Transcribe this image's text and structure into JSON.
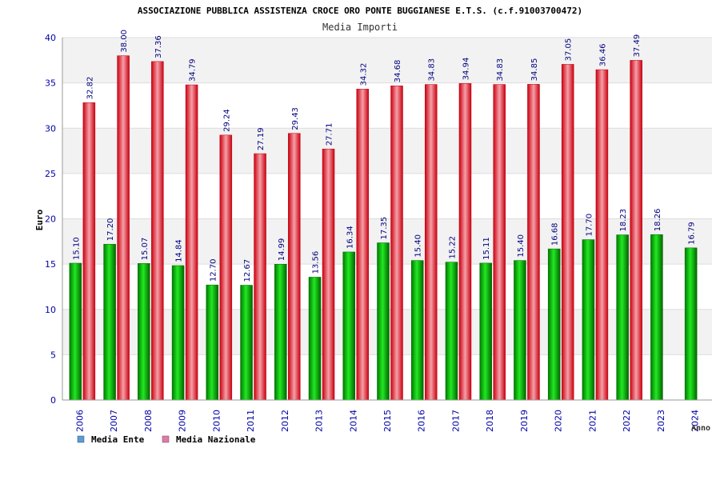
{
  "chart_data": {
    "type": "bar",
    "title": "ASSOCIAZIONE PUBBLICA ASSISTENZA CROCE ORO PONTE BUGGIANESE E.T.S. (c.f.91003700472)",
    "subtitle": "Media Importi",
    "xlabel": "Anno",
    "ylabel": "Euro",
    "ylim": [
      0,
      40
    ],
    "yticks": [
      "0",
      "5",
      "10",
      "15",
      "20",
      "25",
      "30",
      "35",
      "40"
    ],
    "grid": true,
    "legend_position": "bottom-left",
    "categories": [
      "2006",
      "2007",
      "2008",
      "2009",
      "2010",
      "2011",
      "2012",
      "2013",
      "2014",
      "2015",
      "2016",
      "2017",
      "2018",
      "2019",
      "2020",
      "2021",
      "2022",
      "2023",
      "2024"
    ],
    "series": [
      {
        "name": "Media Ente",
        "color": "#00b000",
        "legend_color": "#5b9bd5",
        "values": [
          15.1,
          17.2,
          15.07,
          14.84,
          12.7,
          12.67,
          14.99,
          13.56,
          16.34,
          17.35,
          15.4,
          15.22,
          15.11,
          15.4,
          16.68,
          17.7,
          18.23,
          18.26,
          16.79
        ],
        "labels": [
          "15.10",
          "17.20",
          "15.07",
          "14.84",
          "12.70",
          "12.67",
          "14.99",
          "13.56",
          "16.34",
          "17.35",
          "15.40",
          "15.22",
          "15.11",
          "15.40",
          "16.68",
          "17.70",
          "18.23",
          "18.26",
          "16.79"
        ]
      },
      {
        "name": "Media Nazionale",
        "color": "#e8202a",
        "legend_color": "#e07aa8",
        "values": [
          32.82,
          38.0,
          37.36,
          34.79,
          29.24,
          27.19,
          29.43,
          27.71,
          34.32,
          34.68,
          34.83,
          34.94,
          34.83,
          34.85,
          37.05,
          36.46,
          37.49,
          null,
          null
        ],
        "labels": [
          "32.82",
          "38.00",
          "37.36",
          "34.79",
          "29.24",
          "27.19",
          "29.43",
          "27.71",
          "34.32",
          "34.68",
          "34.83",
          "34.94",
          "34.83",
          "34.85",
          "37.05",
          "36.46",
          "37.49",
          null,
          null
        ]
      }
    ],
    "colors": {
      "axis_text": "#0000aa",
      "value_label": "#000080",
      "band": "#f2f2f2",
      "gridline": "#dddddd"
    }
  }
}
